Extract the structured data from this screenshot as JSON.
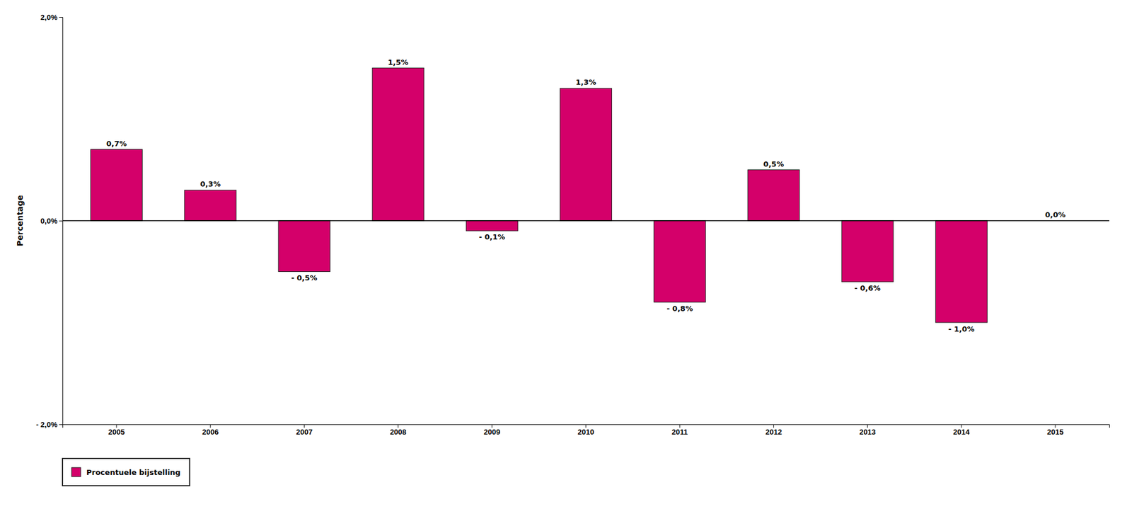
{
  "chart_data": {
    "type": "bar",
    "categories": [
      "2005",
      "2006",
      "2007",
      "2008",
      "2009",
      "2010",
      "2011",
      "2012",
      "2013",
      "2014",
      "2015"
    ],
    "series": [
      {
        "name": "Procentuele bijstelling",
        "color": "#D4006A",
        "values": [
          0.7,
          0.3,
          -0.5,
          1.5,
          -0.1,
          1.3,
          -0.8,
          0.5,
          -0.6,
          -1.0,
          0.0
        ],
        "value_labels": [
          "0,7%",
          "0,3%",
          "- 0,5%",
          "1,5%",
          "- 0,1%",
          "1,3%",
          "- 0,8%",
          "0,5%",
          "- 0,6%",
          "- 1,0%",
          "0,0%"
        ]
      }
    ],
    "ylabel": "Percentage",
    "ylim": [
      -2.0,
      2.0
    ],
    "yticks": [
      {
        "value": -2.0,
        "label": "- 2,0%"
      },
      {
        "value": 0.0,
        "label": "0,0%"
      },
      {
        "value": 2.0,
        "label": "2,0%"
      }
    ],
    "grid": false,
    "legend": "lower left",
    "data_labels": true
  }
}
